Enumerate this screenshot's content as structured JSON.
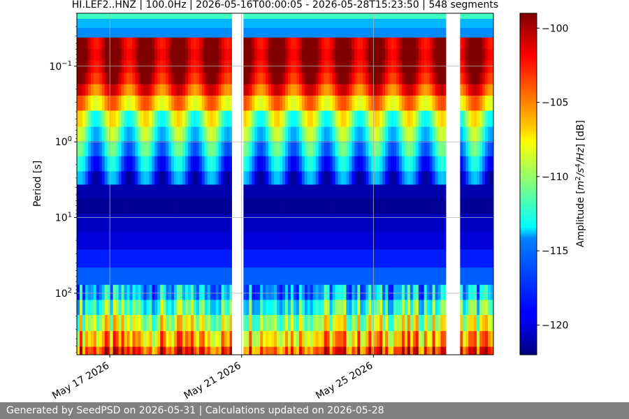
{
  "footer": {
    "text": "Generated by SeedPSD on 2026-05-31 | Calculations updated on 2026-05-28"
  },
  "chart_data": {
    "type": "heatmap",
    "title": "HI.LEF2..HNZ | 100.0Hz | 2026-05-16T00:00:05 - 2026-05-28T15:23:50 | 548 segments",
    "xlabel": "",
    "ylabel": "Period [s]",
    "y_scale": "log",
    "y_inverted": true,
    "ylim": [
      0.02,
      650
    ],
    "xlim": [
      "2026-05-16T00:00:05",
      "2026-05-28T15:23:50"
    ],
    "x_ticks": [
      {
        "date": "2026-05-17",
        "label": "May 17 2026"
      },
      {
        "date": "2026-05-21",
        "label": "May 21 2026"
      },
      {
        "date": "2026-05-25",
        "label": "May 25 2026"
      }
    ],
    "y_ticks": [
      {
        "value": 0.1,
        "base": "10",
        "exp": "−1"
      },
      {
        "value": 1,
        "base": "10",
        "exp": "0"
      },
      {
        "value": 10,
        "base": "10",
        "exp": "1"
      },
      {
        "value": 100,
        "base": "10",
        "exp": "2"
      }
    ],
    "grid": true,
    "colorbar": {
      "label_parts": [
        "Amplitude [",
        "m",
        "2",
        "/s",
        "4",
        "/Hz",
        "] [dB]"
      ],
      "range": [
        -122,
        -99
      ],
      "ticks": [
        -100,
        -105,
        -110,
        -115,
        -120
      ],
      "colormap": "jet"
    },
    "gaps": [
      {
        "start": "2026-05-20T17:00:00",
        "end": "2026-05-21T01:00:00"
      },
      {
        "start": "2026-05-27T05:00:00",
        "end": "2026-05-27T15:00:00"
      }
    ],
    "rows": [
      {
        "period": 0.02,
        "db": -112
      },
      {
        "period": 0.028,
        "db": -115
      },
      {
        "period": 0.035,
        "db": -116
      },
      {
        "period": 0.05,
        "db": -100
      },
      {
        "period": 0.07,
        "db": -99.5
      },
      {
        "period": 0.1,
        "db": -100
      },
      {
        "period": 0.15,
        "db": -101
      },
      {
        "period": 0.2,
        "db": -103
      },
      {
        "period": 0.3,
        "db": -106
      },
      {
        "period": 0.5,
        "db": -110
      },
      {
        "period": 0.8,
        "db": -112
      },
      {
        "period": 1.2,
        "db": -114
      },
      {
        "period": 2,
        "db": -116
      },
      {
        "period": 3,
        "db": -118
      },
      {
        "period": 4.5,
        "db": -121
      },
      {
        "period": 7,
        "db": -121.5
      },
      {
        "period": 12,
        "db": -120.5
      },
      {
        "period": 20,
        "db": -120
      },
      {
        "period": 35,
        "db": -118.5
      },
      {
        "period": 60,
        "db": -117
      },
      {
        "period": 100,
        "db": -115
      },
      {
        "period": 150,
        "db": -112
      },
      {
        "period": 250,
        "db": -109
      },
      {
        "period": 400,
        "db": -106
      },
      {
        "period": 650,
        "db": -103
      }
    ]
  }
}
